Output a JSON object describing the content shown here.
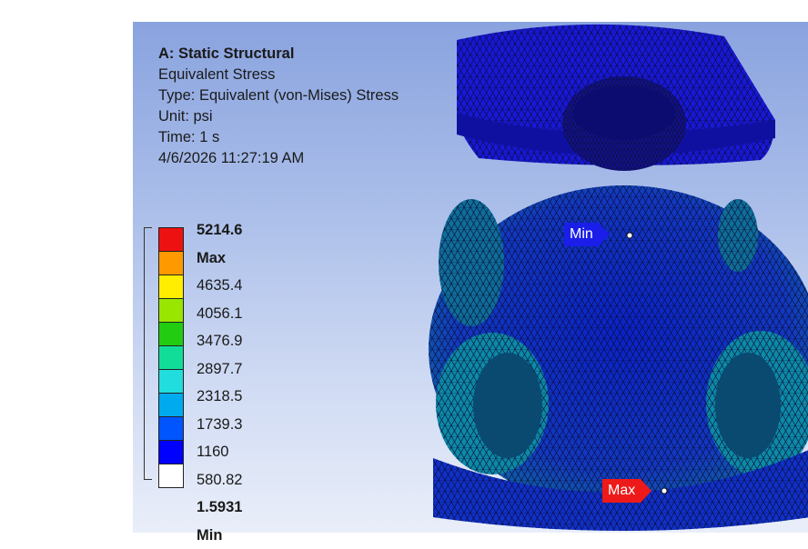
{
  "info": {
    "title": "A: Static Structural",
    "result": "Equivalent Stress",
    "type": "Type: Equivalent (von-Mises) Stress",
    "unit": "Unit: psi",
    "time": "Time: 1 s",
    "timestamp": "4/6/2026 11:27:19 AM"
  },
  "legend": {
    "max_label": "5214.6 Max",
    "levels": [
      "4635.4",
      "4056.1",
      "3476.9",
      "2897.7",
      "2318.5",
      "1739.3",
      "1160",
      "580.82"
    ],
    "min_label": "1.5931 Min",
    "colors": [
      "#ee1111",
      "#ff9900",
      "#ffee00",
      "#99e600",
      "#22cc11",
      "#11dd99",
      "#22dddd",
      "#00aaee",
      "#0055ff",
      "#0000ff",
      "#ffffff"
    ]
  },
  "probes": {
    "min": "Min",
    "max": "Max"
  }
}
